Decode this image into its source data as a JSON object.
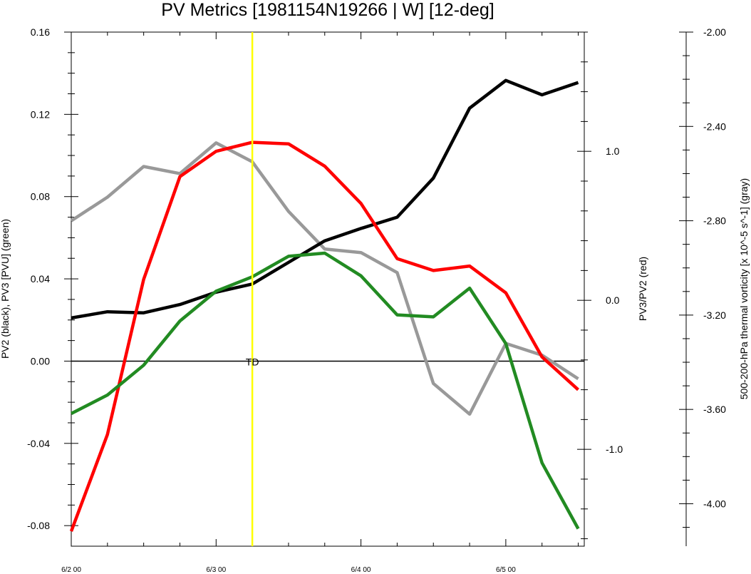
{
  "chart_data": {
    "type": "line",
    "title": "PV Metrics [1981154N19266 | W] [12-deg]",
    "x_tick_labels": [
      "6/2 00",
      "6/3 00",
      "6/4 00",
      "6/5 00"
    ],
    "x_tick_values": [
      0,
      24,
      48,
      72
    ],
    "x_range_hours": [
      0,
      85
    ],
    "x_step_hours": 6,
    "left_axis": {
      "label": "PV2 (black), PV3 [PVU] (green)",
      "ylim": [
        -0.09,
        0.16
      ],
      "tick_values": [
        -0.08,
        -0.04,
        0.0,
        0.04,
        0.08,
        0.12,
        0.16
      ],
      "tick_labels": [
        "-0.08",
        "-0.04",
        "0.00",
        "0.04",
        "0.08",
        "0.12",
        "0.16"
      ]
    },
    "right_axis": {
      "label": "PV3/PV2 (red)",
      "ylim": [
        -1.65,
        1.8
      ],
      "tick_values": [
        -1.0,
        0.0,
        1.0
      ],
      "tick_labels": [
        "-1.0",
        "0.0",
        "1.0"
      ]
    },
    "far_right_axis": {
      "label": "500-200-hPa thermal vorticity [x 10^-5 s^-1] (gray)",
      "ylim": [
        -4.18,
        -2.0
      ],
      "tick_values": [
        -4.0,
        -3.6,
        -3.2,
        -2.8,
        -2.4,
        -2.0
      ],
      "tick_labels": [
        "-4.00",
        "-3.60",
        "-3.20",
        "-2.80",
        "-2.40",
        "-2.00"
      ]
    },
    "series": [
      {
        "color": "#000000",
        "axis": "left",
        "values": [
          0.021,
          0.024,
          0.0235,
          0.0275,
          0.0335,
          0.0375,
          0.048,
          0.0585,
          0.0645,
          0.07,
          0.089,
          0.123,
          0.1365,
          0.1295,
          0.1355
        ]
      },
      {
        "color": "#228b22",
        "axis": "left",
        "values": [
          -0.0255,
          -0.0165,
          -0.002,
          0.0195,
          0.034,
          0.041,
          0.051,
          0.0525,
          0.0415,
          0.0225,
          0.0215,
          0.0355,
          0.0085,
          -0.0495,
          -0.0815
        ]
      },
      {
        "color": "#ff0000",
        "axis": "right",
        "values": [
          -1.55,
          -0.9,
          0.14,
          0.83,
          1.0,
          1.06,
          1.05,
          0.9,
          0.65,
          0.28,
          0.2,
          0.23,
          0.05,
          -0.38,
          -0.6
        ]
      },
      {
        "color": "#999999",
        "axis": "far_right",
        "values": [
          -2.8,
          -2.7,
          -2.57,
          -2.6,
          -2.47,
          -2.55,
          -2.76,
          -2.92,
          -2.935,
          -3.02,
          -3.49,
          -3.62,
          -3.32,
          -3.37,
          -3.47
        ]
      }
    ],
    "vertical_line": {
      "x_hour": 30,
      "color": "#ffff00",
      "label": "TD"
    },
    "zero_line": 0.0,
    "grid": false,
    "legend": "none"
  }
}
